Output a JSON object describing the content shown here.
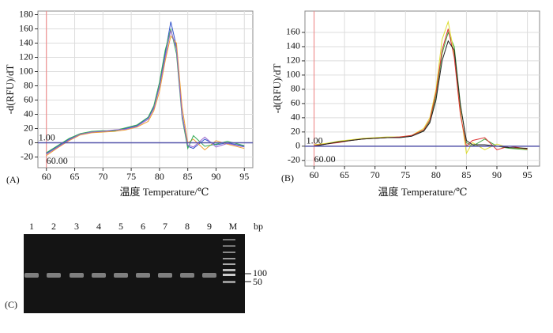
{
  "chart_data": [
    {
      "type": "line",
      "panel": "(A)",
      "y_label": "-d(RFU)/dT",
      "x_label": "温度 Temperature/℃",
      "threshold": 0,
      "threshold_label": "1.00",
      "start": 60,
      "start_label": "60.00",
      "xlim": [
        58.5,
        96.5
      ],
      "ylim": [
        -35,
        185
      ],
      "xticks": [
        60,
        65,
        70,
        75,
        80,
        85,
        90,
        95
      ],
      "yticks": [
        -20,
        0,
        20,
        40,
        60,
        80,
        100,
        120,
        140,
        160,
        180
      ],
      "grid": true,
      "x": [
        60,
        62,
        64,
        66,
        68,
        70,
        72,
        74,
        76,
        78,
        79,
        80,
        81,
        82,
        83,
        84,
        85,
        86,
        88,
        90,
        92,
        95
      ],
      "series": [
        {
          "color": "#3355cc",
          "values": [
            -15,
            -5,
            5,
            12,
            15,
            16,
            17,
            20,
            24,
            35,
            50,
            80,
            125,
            170,
            135,
            40,
            -5,
            -8,
            5,
            -3,
            0,
            -5
          ]
        },
        {
          "color": "#f0a030",
          "values": [
            -18,
            -7,
            3,
            11,
            14,
            15,
            16,
            18,
            22,
            30,
            45,
            72,
            115,
            150,
            140,
            50,
            0,
            5,
            -10,
            3,
            -2,
            -8
          ]
        },
        {
          "color": "#33aa55",
          "values": [
            -14,
            -4,
            6,
            13,
            16,
            17,
            17,
            21,
            25,
            36,
            52,
            85,
            130,
            160,
            125,
            35,
            -8,
            10,
            -5,
            -2,
            2,
            -4
          ]
        },
        {
          "color": "#9966cc",
          "values": [
            -16,
            -6,
            4,
            12,
            15,
            16,
            18,
            19,
            23,
            33,
            48,
            78,
            120,
            158,
            132,
            38,
            -3,
            -6,
            8,
            -6,
            -1,
            -6
          ]
        }
      ]
    },
    {
      "type": "line",
      "panel": "(B)",
      "y_label": "-d(RFU)/dT",
      "x_label": "温度 Temperature/℃",
      "threshold": 0,
      "threshold_label": "1.00",
      "start": 60,
      "start_label": "60.00",
      "xlim": [
        58.5,
        97
      ],
      "ylim": [
        -28,
        190
      ],
      "xticks": [
        60,
        65,
        70,
        75,
        80,
        85,
        90,
        95
      ],
      "yticks": [
        -20,
        0,
        20,
        40,
        60,
        80,
        100,
        120,
        140,
        160
      ],
      "grid": true,
      "x": [
        60,
        62,
        64,
        66,
        68,
        70,
        72,
        74,
        76,
        78,
        79,
        80,
        81,
        82,
        83,
        84,
        85,
        86,
        88,
        90,
        92,
        95
      ],
      "series": [
        {
          "color": "#44aa44",
          "values": [
            0,
            3,
            6,
            8,
            10,
            11,
            12,
            12,
            14,
            22,
            35,
            70,
            130,
            160,
            140,
            60,
            5,
            0,
            10,
            0,
            -3,
            -5
          ]
        },
        {
          "color": "#dddd33",
          "values": [
            2,
            4,
            7,
            9,
            11,
            12,
            13,
            13,
            15,
            25,
            40,
            80,
            150,
            175,
            130,
            50,
            -10,
            5,
            -5,
            3,
            -2,
            -4
          ]
        },
        {
          "color": "#dd3333",
          "values": [
            1,
            3,
            5,
            8,
            10,
            11,
            12,
            13,
            15,
            23,
            37,
            75,
            135,
            165,
            125,
            45,
            0,
            8,
            12,
            -5,
            0,
            -4
          ]
        },
        {
          "color": "#222222",
          "values": [
            0,
            3,
            6,
            8,
            10,
            11,
            12,
            12,
            14,
            21,
            33,
            65,
            120,
            148,
            135,
            58,
            8,
            2,
            2,
            0,
            -2,
            -3
          ]
        }
      ]
    }
  ],
  "gel": {
    "panel": "(C)",
    "lanes": [
      "1",
      "2",
      "3",
      "4",
      "5",
      "6",
      "7",
      "8",
      "9",
      "M"
    ],
    "unit": "bp",
    "marker_labels": [
      "100",
      "50"
    ]
  }
}
